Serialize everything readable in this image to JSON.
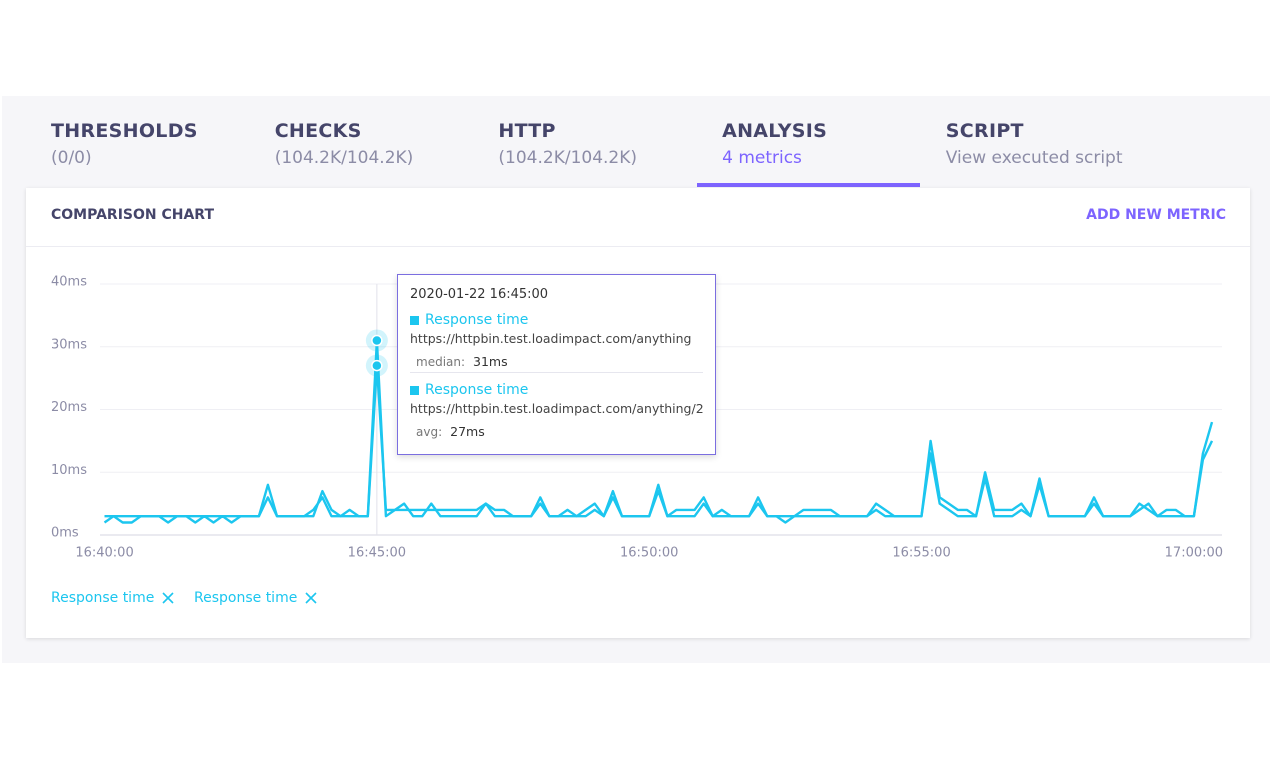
{
  "tabs": [
    {
      "title": "THRESHOLDS",
      "subtitle": "(0/0)"
    },
    {
      "title": "CHECKS",
      "subtitle": "(104.2K/104.2K)"
    },
    {
      "title": "HTTP",
      "subtitle": "(104.2K/104.2K)"
    },
    {
      "title": "ANALYSIS",
      "subtitle": "4 metrics",
      "active": true
    },
    {
      "title": "SCRIPT",
      "subtitle": "View executed script"
    }
  ],
  "card": {
    "title": "COMPARISON CHART",
    "action": "ADD NEW METRIC"
  },
  "chart_data": {
    "type": "line",
    "grid": true,
    "x": [
      "16:40:00",
      "16:40:10",
      "16:40:20",
      "16:40:30",
      "16:40:40",
      "16:40:50",
      "16:41:00",
      "16:41:10",
      "16:41:20",
      "16:41:30",
      "16:41:40",
      "16:41:50",
      "16:42:00",
      "16:42:10",
      "16:42:20",
      "16:42:30",
      "16:42:40",
      "16:42:50",
      "16:43:00",
      "16:43:10",
      "16:43:20",
      "16:43:30",
      "16:43:40",
      "16:43:50",
      "16:44:00",
      "16:44:10",
      "16:44:20",
      "16:44:30",
      "16:44:40",
      "16:44:50",
      "16:45:00",
      "16:45:10",
      "16:45:20",
      "16:45:30",
      "16:45:40",
      "16:45:50",
      "16:46:00",
      "16:46:10",
      "16:46:20",
      "16:46:30",
      "16:46:40",
      "16:46:50",
      "16:47:00",
      "16:47:10",
      "16:47:20",
      "16:47:30",
      "16:47:40",
      "16:47:50",
      "16:48:00",
      "16:48:10",
      "16:48:20",
      "16:48:30",
      "16:48:40",
      "16:48:50",
      "16:49:00",
      "16:49:10",
      "16:49:20",
      "16:49:30",
      "16:49:40",
      "16:49:50",
      "16:50:00",
      "16:50:10",
      "16:50:20",
      "16:50:30",
      "16:50:40",
      "16:50:50",
      "16:51:00",
      "16:51:10",
      "16:51:20",
      "16:51:30",
      "16:51:40",
      "16:51:50",
      "16:52:00",
      "16:52:10",
      "16:52:20",
      "16:52:30",
      "16:52:40",
      "16:52:50",
      "16:53:00",
      "16:53:10",
      "16:53:20",
      "16:53:30",
      "16:53:40",
      "16:53:50",
      "16:54:00",
      "16:54:10",
      "16:54:20",
      "16:54:30",
      "16:54:40",
      "16:54:50",
      "16:55:00",
      "16:55:10",
      "16:55:20",
      "16:55:30",
      "16:55:40",
      "16:55:50",
      "16:56:00",
      "16:56:10",
      "16:56:20",
      "16:56:30",
      "16:56:40",
      "16:56:50",
      "16:57:00",
      "16:57:10",
      "16:57:20",
      "16:57:30",
      "16:57:40",
      "16:57:50",
      "16:58:00",
      "16:58:10",
      "16:58:20",
      "16:58:30",
      "16:58:40",
      "16:58:50",
      "16:59:00",
      "16:59:10",
      "16:59:20",
      "16:59:30",
      "16:59:40",
      "16:59:50",
      "17:00:00",
      "17:00:10",
      "17:00:20"
    ],
    "xlim": [
      "16:39:55",
      "17:00:31"
    ],
    "xticks": [
      "16:40:00",
      "16:45:00",
      "16:50:00",
      "16:55:00",
      "17:00:00"
    ],
    "ylim": [
      0,
      40
    ],
    "yticks": [
      {
        "value": 0,
        "label": "0ms"
      },
      {
        "value": 10,
        "label": "10ms"
      },
      {
        "value": 20,
        "label": "20ms"
      },
      {
        "value": 30,
        "label": "30ms"
      },
      {
        "value": 40,
        "label": "40ms"
      }
    ],
    "series": [
      {
        "name": "Response time",
        "color": "#1cc6ef",
        "values": [
          2,
          3,
          3,
          3,
          3,
          3,
          3,
          3,
          3,
          3,
          3,
          3,
          3,
          3,
          3,
          3,
          3,
          3,
          8,
          3,
          3,
          3,
          3,
          4,
          6,
          3,
          3,
          4,
          3,
          3,
          31,
          3,
          4,
          4,
          4,
          4,
          4,
          4,
          4,
          4,
          4,
          4,
          5,
          4,
          4,
          3,
          3,
          3,
          6,
          3,
          3,
          3,
          3,
          4,
          5,
          3,
          7,
          3,
          3,
          3,
          3,
          8,
          3,
          4,
          4,
          4,
          6,
          3,
          3,
          3,
          3,
          3,
          6,
          3,
          3,
          3,
          3,
          4,
          4,
          4,
          4,
          3,
          3,
          3,
          3,
          5,
          4,
          3,
          3,
          3,
          3,
          15,
          6,
          5,
          4,
          4,
          3,
          10,
          4,
          4,
          4,
          5,
          3,
          9,
          3,
          3,
          3,
          3,
          3,
          6,
          3,
          3,
          3,
          3,
          5,
          4,
          3,
          4,
          4,
          3,
          3,
          13,
          18
        ]
      },
      {
        "name": "Response time",
        "color": "#1cc6ef",
        "values": [
          3,
          3,
          2,
          2,
          3,
          3,
          3,
          2,
          3,
          3,
          2,
          3,
          2,
          3,
          2,
          3,
          3,
          3,
          6,
          3,
          3,
          3,
          3,
          3,
          7,
          4,
          3,
          3,
          3,
          3,
          27,
          4,
          4,
          5,
          3,
          3,
          5,
          3,
          3,
          3,
          3,
          3,
          5,
          3,
          3,
          3,
          3,
          3,
          5,
          3,
          3,
          4,
          3,
          3,
          4,
          3,
          6,
          3,
          3,
          3,
          3,
          7,
          3,
          3,
          3,
          3,
          5,
          3,
          4,
          3,
          3,
          3,
          5,
          3,
          3,
          2,
          3,
          3,
          3,
          3,
          3,
          3,
          3,
          3,
          3,
          4,
          3,
          3,
          3,
          3,
          3,
          13,
          5,
          4,
          3,
          3,
          3,
          9,
          3,
          3,
          3,
          4,
          3,
          8,
          3,
          3,
          3,
          3,
          3,
          5,
          3,
          3,
          3,
          3,
          4,
          5,
          3,
          3,
          3,
          3,
          3,
          12,
          15
        ]
      }
    ]
  },
  "tooltip": {
    "date": "2020-01-22 16:45:00",
    "entries": [
      {
        "name": "Response time",
        "url": "https://httpbin.test.loadimpact.com/anything",
        "stat": "median:",
        "value": "31ms"
      },
      {
        "name": "Response time",
        "url": "https://httpbin.test.loadimpact.com/anything/2",
        "stat": "avg:",
        "value": "27ms"
      }
    ]
  }
}
